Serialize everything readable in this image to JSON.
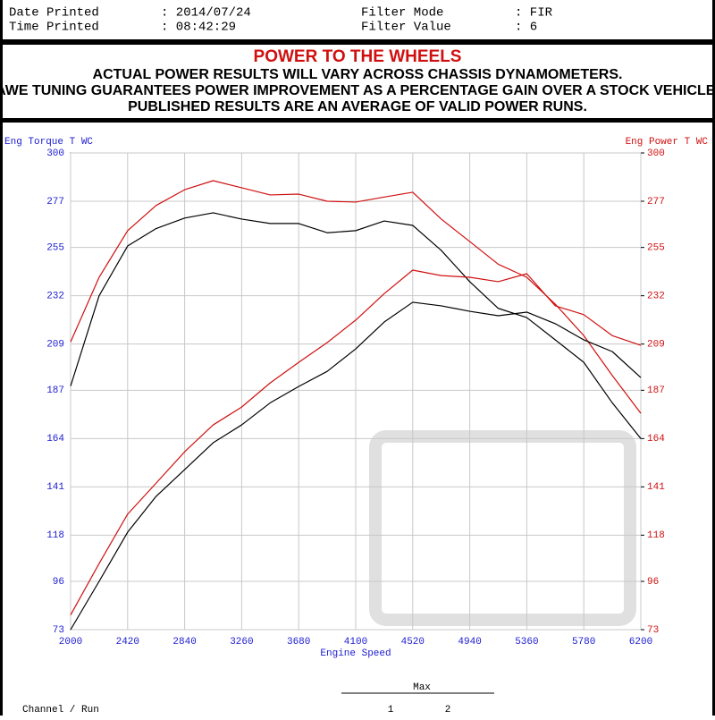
{
  "header": {
    "rows": [
      [
        "Date Printed",
        ": 2014/07/24",
        "Filter Mode",
        ": FIR"
      ],
      [
        "Time Printed",
        ": 08:42:29",
        "Filter Value",
        ": 6"
      ]
    ]
  },
  "banner": {
    "title": "POWER TO THE WHEELS",
    "lines": [
      "ACTUAL POWER RESULTS WILL VARY ACROSS CHASSIS DYNAMOMETERS.",
      "AWE TUNING GUARANTEES POWER IMPROVEMENT AS A PERCENTAGE GAIN OVER A STOCK VEHICLE.",
      "PUBLISHED RESULTS ARE AN AVERAGE OF VALID POWER RUNS."
    ]
  },
  "footer": {
    "heading": "Max",
    "label": "Channel / Run",
    "runs": [
      "1",
      "2"
    ]
  },
  "chart_data": {
    "type": "line",
    "x_label": "Engine Speed",
    "y_label": "Eng Torque T WC",
    "y2_label": "Eng Power T WC",
    "x": [
      2000,
      2210,
      2420,
      2630,
      2840,
      3050,
      3260,
      3470,
      3680,
      3890,
      4100,
      4310,
      4520,
      4730,
      4940,
      5150,
      5360,
      5570,
      5780,
      5990,
      6200
    ],
    "xlim": [
      2000,
      6200
    ],
    "xticks": [
      2000,
      2420,
      2840,
      3260,
      3680,
      4100,
      4520,
      4940,
      5360,
      5780,
      6200
    ],
    "ylim": [
      73,
      300
    ],
    "yticks": [
      73,
      96,
      118,
      141,
      164,
      187,
      209,
      232,
      255,
      277,
      300
    ],
    "y2lim": [
      73,
      300
    ],
    "y2ticks": [
      73,
      96,
      118,
      141,
      164,
      187,
      209,
      232,
      255,
      277,
      300
    ],
    "y_color": "#1c1cd0",
    "y2_color": "#d01010",
    "grid": true,
    "series": [
      {
        "color": "#000000",
        "values": [
          189,
          232,
          255.7,
          264,
          269,
          271.5,
          268.5,
          266.4,
          266.4,
          262,
          263,
          267.6,
          265.5,
          253.6,
          238.7,
          226,
          221.6,
          211,
          200.3,
          181,
          164
        ]
      },
      {
        "color": "#d01010",
        "values": [
          210,
          240.8,
          263,
          275,
          282.5,
          286.8,
          283.4,
          280,
          280.4,
          277,
          276.6,
          279,
          281.3,
          268.5,
          257.8,
          247,
          240.8,
          228,
          213,
          194,
          176
        ]
      },
      {
        "color": "#000000",
        "axis": "y2",
        "values": [
          73,
          96,
          119.4,
          136.5,
          149.2,
          162,
          170.5,
          181,
          188.8,
          196,
          206.7,
          219.5,
          228.9,
          227.2,
          224.6,
          222.5,
          224.2,
          218.7,
          211,
          205.4,
          193
        ]
      },
      {
        "color": "#d01010",
        "axis": "y2",
        "values": [
          80,
          104.5,
          128,
          142.8,
          157.7,
          170.5,
          179,
          190.5,
          200.3,
          209.7,
          220.4,
          233,
          244.2,
          241.6,
          240.8,
          238.7,
          242.5,
          227.2,
          223,
          213,
          208.4
        ]
      }
    ]
  }
}
